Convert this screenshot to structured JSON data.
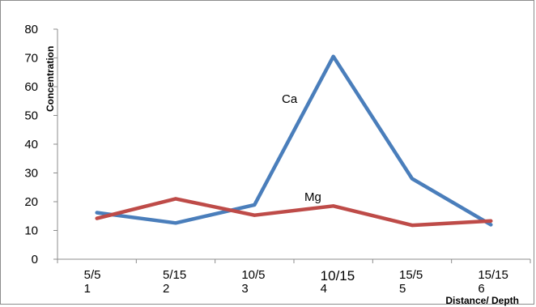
{
  "chart_data": {
    "type": "line",
    "xlabel": "Distance/ Depth",
    "ylabel": "Concentration",
    "ylim": [
      0,
      80
    ],
    "y_ticks": [
      "0",
      "10",
      "20",
      "30",
      "40",
      "50",
      "60",
      "70",
      "80"
    ],
    "categories": [
      {
        "top": "5/5",
        "bottom": "1"
      },
      {
        "top": "5/15",
        "bottom": "2"
      },
      {
        "top": "10/5",
        "bottom": "3"
      },
      {
        "top": "10/15",
        "bottom": "4"
      },
      {
        "top": "15/5",
        "bottom": "5"
      },
      {
        "top": "15/15",
        "bottom": "6"
      }
    ],
    "grid": false,
    "legend": "none",
    "series": [
      {
        "name": "Ca",
        "color": "#4a7ebb",
        "values": [
          16.2,
          12.6,
          18.9,
          70.5,
          28.0,
          12.0
        ]
      },
      {
        "name": "Mg",
        "color": "#be4b48",
        "values": [
          14.2,
          21.0,
          15.3,
          18.5,
          11.8,
          13.3
        ]
      }
    ]
  }
}
